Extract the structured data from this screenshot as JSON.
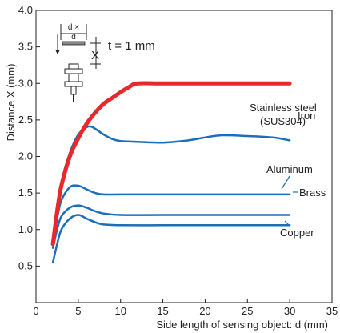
{
  "chart_data": {
    "type": "line",
    "xlabel": "Side length of sensing object: d (mm)",
    "ylabel": "Distance X (mm)",
    "xlim": [
      0,
      35
    ],
    "ylim": [
      0,
      4.0
    ],
    "xticks": [
      "0",
      "5",
      "10",
      "15",
      "20",
      "25",
      "30",
      "35"
    ],
    "yticks": [
      "0.5",
      "1.0",
      "1.5",
      "2.0",
      "2.5",
      "3.0",
      "3.5",
      "4.0"
    ],
    "grid": false,
    "colors": {
      "iron": "#e8282a",
      "others": "#1a6fba",
      "leader": "#1a6fba"
    },
    "inset": {
      "thickness_label": "t = 1 mm",
      "d_label": "d",
      "dx_label": "d ×",
      "x_label": "X"
    },
    "series": [
      {
        "name": "Iron",
        "x": [
          2,
          2.5,
          3,
          4,
          5,
          6,
          7,
          8,
          9,
          10,
          11,
          12,
          15,
          20,
          25,
          30
        ],
        "y": [
          0.8,
          1.25,
          1.6,
          2.0,
          2.25,
          2.45,
          2.6,
          2.72,
          2.8,
          2.88,
          2.95,
          3.0,
          3.0,
          3.0,
          3.0,
          3.0
        ]
      },
      {
        "name": "Stainless steel\n(SUS304)",
        "x": [
          2,
          2.5,
          3,
          4,
          5,
          6,
          6.5,
          7,
          8,
          9,
          10,
          12,
          15,
          18,
          20,
          22,
          25,
          28,
          30
        ],
        "y": [
          0.8,
          1.3,
          1.65,
          2.05,
          2.3,
          2.4,
          2.41,
          2.38,
          2.3,
          2.24,
          2.21,
          2.2,
          2.19,
          2.22,
          2.26,
          2.29,
          2.28,
          2.26,
          2.22
        ]
      },
      {
        "name": "Aluminum",
        "x": [
          2,
          2.5,
          3,
          4,
          5,
          6,
          7,
          8,
          10,
          15,
          20,
          25,
          30
        ],
        "y": [
          0.8,
          1.15,
          1.4,
          1.58,
          1.6,
          1.55,
          1.5,
          1.48,
          1.48,
          1.48,
          1.48,
          1.48,
          1.48
        ]
      },
      {
        "name": "Brass",
        "x": [
          2,
          2.5,
          3,
          4,
          5,
          6,
          7,
          8,
          10,
          15,
          20,
          25,
          30
        ],
        "y": [
          0.75,
          1.0,
          1.18,
          1.3,
          1.33,
          1.3,
          1.25,
          1.22,
          1.2,
          1.2,
          1.2,
          1.2,
          1.2
        ]
      },
      {
        "name": "Copper",
        "x": [
          2,
          2.5,
          3,
          4,
          5,
          6,
          7,
          8,
          10,
          15,
          20,
          25,
          30
        ],
        "y": [
          0.55,
          0.8,
          1.0,
          1.15,
          1.2,
          1.15,
          1.1,
          1.07,
          1.06,
          1.06,
          1.06,
          1.06,
          1.06
        ]
      }
    ]
  }
}
